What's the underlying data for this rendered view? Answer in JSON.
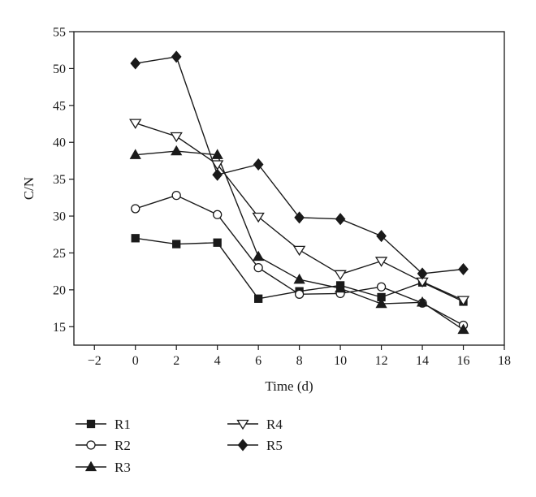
{
  "chart_data": {
    "type": "line",
    "xlabel": "Time (d)",
    "ylabel": "C/N",
    "xlim": [
      -3,
      18
    ],
    "ylim": [
      12.5,
      55
    ],
    "xticks": [
      -2,
      0,
      2,
      4,
      6,
      8,
      10,
      12,
      14,
      16,
      18
    ],
    "yticks": [
      15,
      20,
      25,
      30,
      35,
      40,
      45,
      50,
      55
    ],
    "grid": false,
    "legend_position": "bottom",
    "x": [
      0,
      2,
      4,
      6,
      8,
      10,
      12,
      14,
      16
    ],
    "series": [
      {
        "name": "R1",
        "marker": "square-filled",
        "values": [
          27.0,
          26.2,
          26.4,
          18.8,
          19.8,
          20.6,
          19.0,
          21.0,
          18.4
        ]
      },
      {
        "name": "R2",
        "marker": "circle-open",
        "values": [
          31.0,
          32.8,
          30.2,
          23.0,
          19.4,
          19.5,
          20.4,
          18.2,
          15.2
        ]
      },
      {
        "name": "R3",
        "marker": "triangle-up-filled",
        "values": [
          38.3,
          38.8,
          38.3,
          24.5,
          21.4,
          20.2,
          18.1,
          18.3,
          14.6
        ]
      },
      {
        "name": "R4",
        "marker": "triangle-down-open",
        "values": [
          42.6,
          40.8,
          37.0,
          29.9,
          25.4,
          22.1,
          23.9,
          21.1,
          18.6
        ]
      },
      {
        "name": "R5",
        "marker": "diamond-filled",
        "values": [
          50.7,
          51.6,
          35.6,
          37.0,
          29.8,
          29.6,
          27.3,
          22.2,
          22.8
        ]
      }
    ]
  }
}
